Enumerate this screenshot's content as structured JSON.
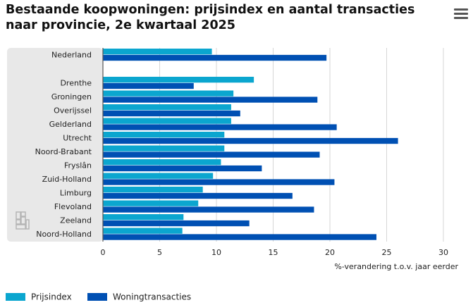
{
  "title_lines": [
    "Bestaande koopwoningen: prijsindex en aantal transacties",
    "naar provincie, 2e kwartaal 2025"
  ],
  "menu_icon": "hamburger-menu-icon",
  "logo_icon": "cbs-logo-icon",
  "colors": {
    "prijsindex": "#0ba6cf",
    "woningtransacties": "#0050b3",
    "grid": "#d6d6d6",
    "band": "#e8e8e8"
  },
  "chart_data": {
    "type": "bar",
    "orientation": "horizontal",
    "title": "Bestaande koopwoningen: prijsindex en aantal transacties naar provincie, 2e kwartaal 2025",
    "categories": [
      "Nederland",
      "Drenthe",
      "Groningen",
      "Overijssel",
      "Gelderland",
      "Utrecht",
      "Noord-Brabant",
      "Fryslân",
      "Zuid-Holland",
      "Limburg",
      "Flevoland",
      "Zeeland",
      "Noord-Holland"
    ],
    "series": [
      {
        "name": "Prijsindex",
        "values": [
          9.6,
          13.3,
          11.5,
          11.3,
          11.3,
          10.7,
          10.7,
          10.4,
          9.7,
          8.8,
          8.4,
          7.1,
          7.0
        ]
      },
      {
        "name": "Woningtransacties",
        "values": [
          19.7,
          8.0,
          18.9,
          12.1,
          20.6,
          26.0,
          19.1,
          14.0,
          20.4,
          16.7,
          18.6,
          12.9,
          24.1
        ]
      }
    ],
    "xlim": [
      0,
      30
    ],
    "xticks": [
      0,
      5,
      10,
      15,
      20,
      25,
      30
    ],
    "xtick_labels": [
      "0",
      "5",
      "10",
      "15",
      "20",
      "25",
      "30"
    ],
    "xlabel": "%-verandering t.o.v. jaar eerder",
    "ylabel": "",
    "grid": true,
    "legend_position": "bottom-left"
  }
}
